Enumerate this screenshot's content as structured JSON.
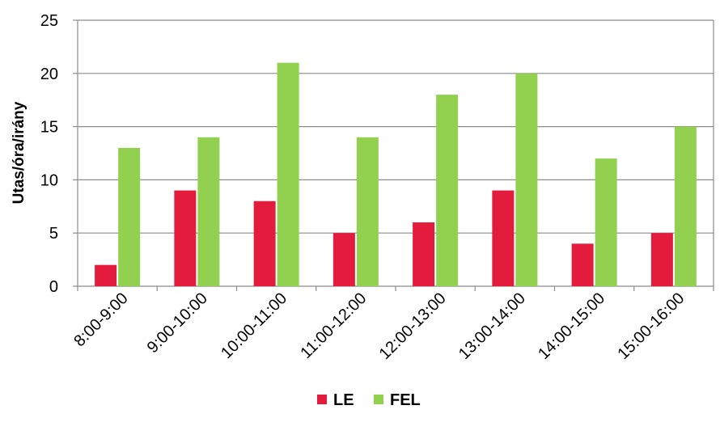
{
  "chart_data": {
    "type": "bar",
    "categories": [
      "8:00-9:00",
      "9:00-10:00",
      "10:00-11:00",
      "11:00-12:00",
      "12:00-13:00",
      "13:00-14:00",
      "14:00-15:00",
      "15:00-16:00"
    ],
    "series": [
      {
        "name": "LE",
        "color": "#e31b3d",
        "values": [
          2,
          9,
          8,
          5,
          6,
          9,
          4,
          5
        ]
      },
      {
        "name": "FEL",
        "color": "#92d050",
        "values": [
          13,
          14,
          21,
          14,
          18,
          20,
          12,
          15
        ]
      }
    ],
    "xlabel": "",
    "ylabel": "Utas/óra/irány",
    "ylim": [
      0,
      25
    ],
    "yticks": [
      0,
      5,
      10,
      15,
      20,
      25
    ],
    "grid": true,
    "legend_position": "bottom"
  }
}
